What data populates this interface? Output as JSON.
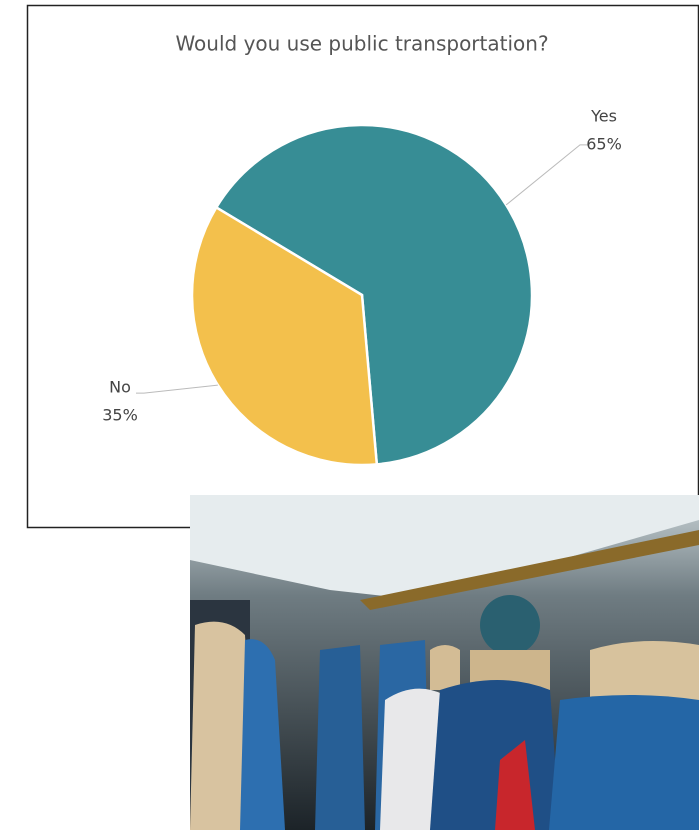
{
  "chart_data": {
    "type": "pie",
    "title": "Would you use public transportation?",
    "categories": [
      "Yes",
      "No"
    ],
    "values": [
      65,
      35
    ],
    "value_labels": [
      "65%",
      "35%"
    ],
    "colors": [
      "#378d95",
      "#f3c04c"
    ],
    "start_angle": 301
  }
}
